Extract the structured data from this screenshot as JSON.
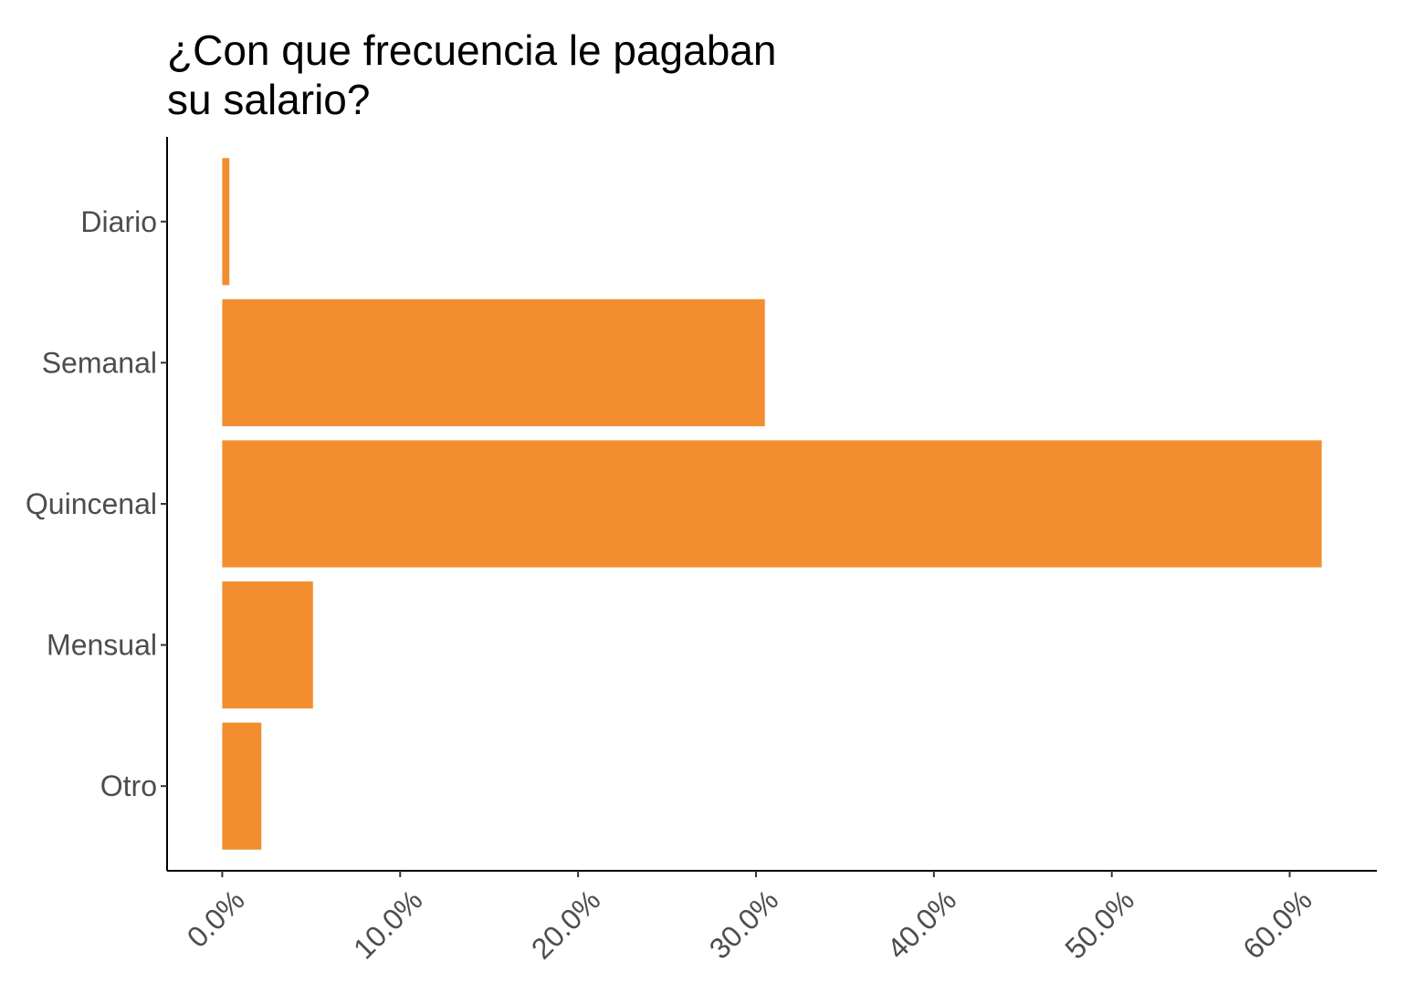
{
  "title_lines": [
    "¿Con que frecuencia le pagaban",
    "su salario?"
  ],
  "bar_color": "#F28E2F",
  "chart_data": {
    "type": "bar",
    "orientation": "horizontal",
    "title": "¿Con que frecuencia le pagaban su salario?",
    "categories": [
      "Diario",
      "Semanal",
      "Quincenal",
      "Mensual",
      "Otro"
    ],
    "values": [
      0.4,
      30.5,
      61.8,
      5.1,
      2.2
    ],
    "unit": "%",
    "xlabel": "",
    "ylabel": "",
    "xlim": [
      -3.1,
      64.9
    ],
    "xticks": [
      0,
      10,
      20,
      30,
      40,
      50,
      60
    ],
    "xtick_labels": [
      "0.0%",
      "10.0%",
      "20.0%",
      "30.0%",
      "40.0%",
      "50.0%",
      "60.0%"
    ],
    "grid": false,
    "legend": "none"
  }
}
